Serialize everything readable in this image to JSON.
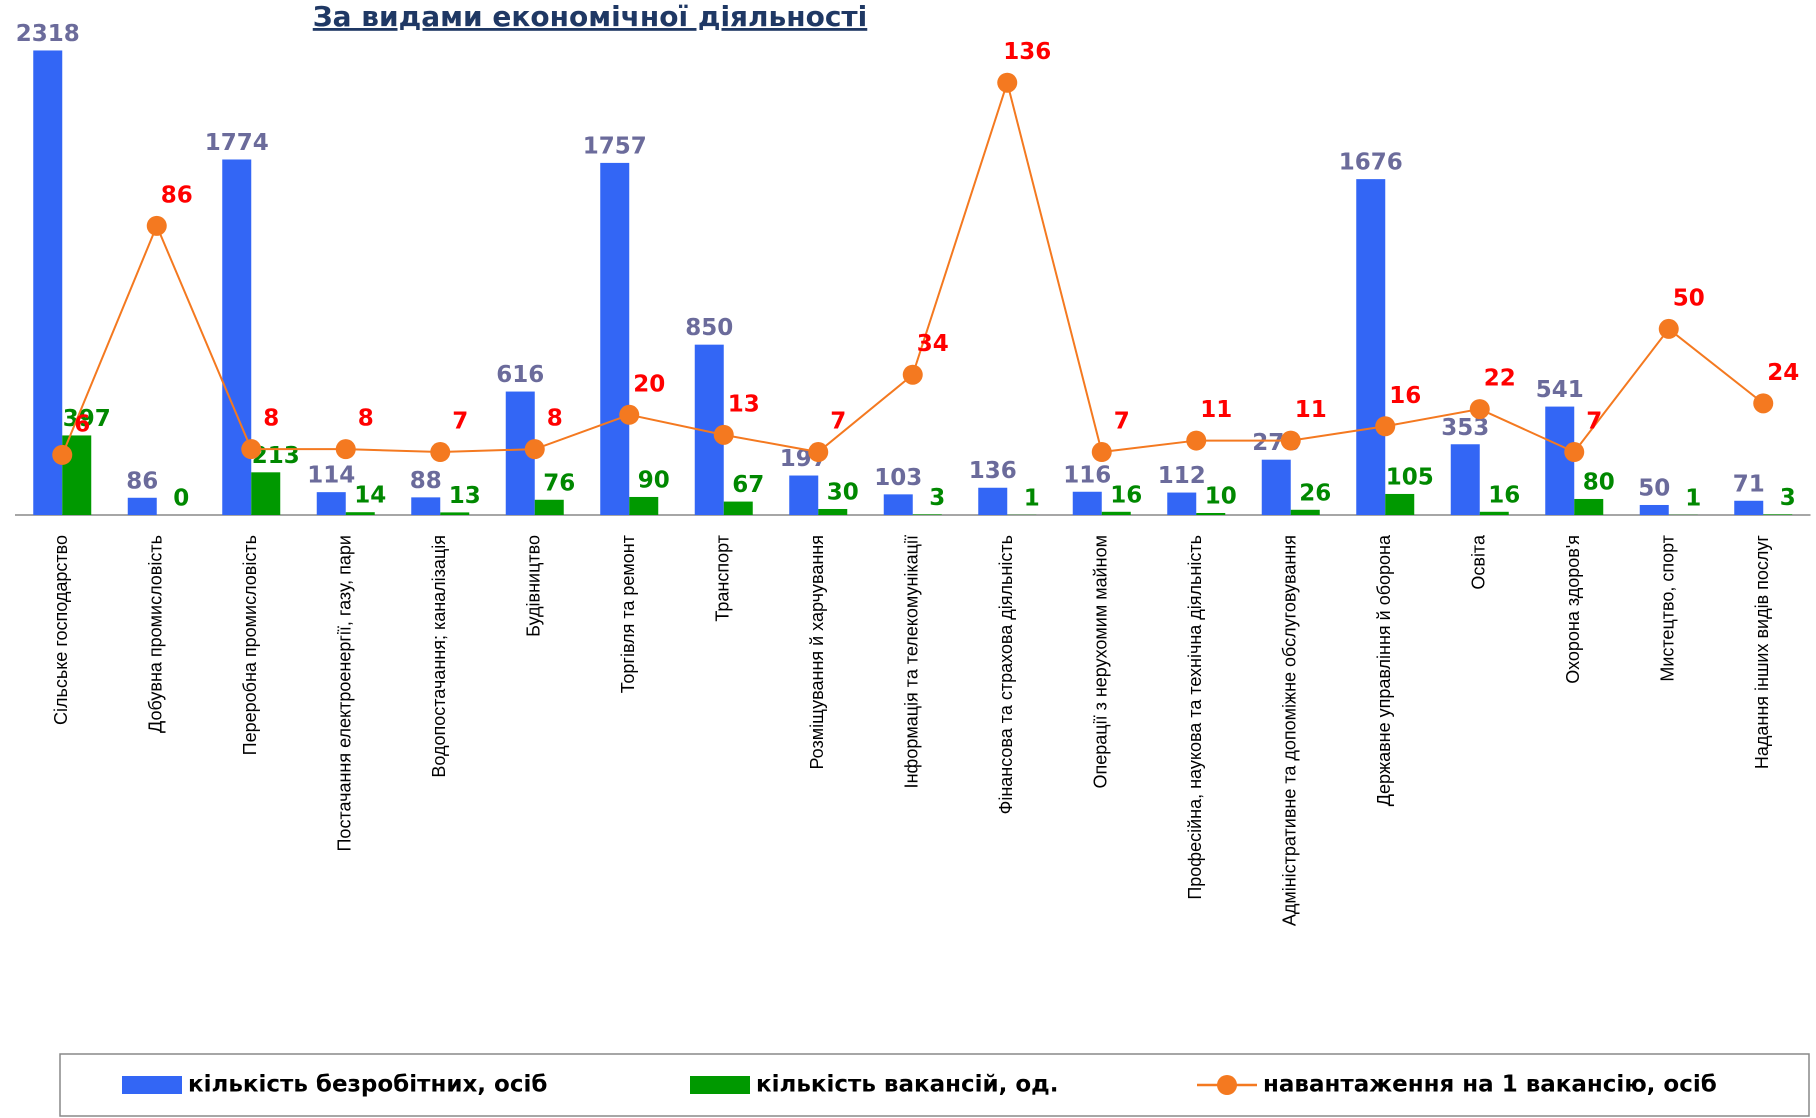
{
  "chart_data": {
    "type": "bar",
    "title": "За видами економічної діяльності",
    "categories": [
      "Сільське господарство",
      "Добувна промисловість",
      "Переробна промисловість",
      "Постачання електроенергії, газу, пари",
      "Водопостачання; каналізація",
      "Будівництво",
      "Торгівля та ремонт",
      "Транспорт",
      "Розміщування й харчування",
      "Інформація та телекомунікації",
      "Фінансова та страхова діяльність",
      "Операції з нерухомим майном",
      "Професійна, наукова та технічна діяльність",
      "Адміністративне та допоміжне обслуговування",
      "Державне управління й оборона",
      "Освіта",
      "Охорона здоров'я",
      "Мистецтво, спорт",
      "Надання інших видів послуг"
    ],
    "series": [
      {
        "name": "кількість безробітних, осіб",
        "type": "bar",
        "color": "#3366f5",
        "label_color": "#6b6b9b",
        "values": [
          2318,
          86,
          1774,
          114,
          88,
          616,
          1757,
          850,
          197,
          103,
          136,
          116,
          112,
          276,
          1676,
          353,
          541,
          50,
          71
        ]
      },
      {
        "name": "кількість вакансій, од.",
        "type": "bar",
        "color": "#009900",
        "label_color": "#008800",
        "values": [
          397,
          0,
          213,
          14,
          13,
          76,
          90,
          67,
          30,
          3,
          1,
          16,
          10,
          26,
          105,
          16,
          80,
          1,
          3
        ]
      },
      {
        "name": "навантаження на 1 вакансію, осіб",
        "type": "line",
        "axis": "y2",
        "color": "#f47920",
        "label_color": "#ff0000",
        "values": [
          6,
          86,
          8,
          8,
          7,
          8,
          20,
          13,
          7,
          34,
          136,
          7,
          11,
          11,
          16,
          22,
          7,
          50,
          24
        ]
      }
    ],
    "ylim": [
      0,
      2500
    ],
    "y2lim": [
      -15,
      160
    ],
    "legend": "bottom"
  }
}
